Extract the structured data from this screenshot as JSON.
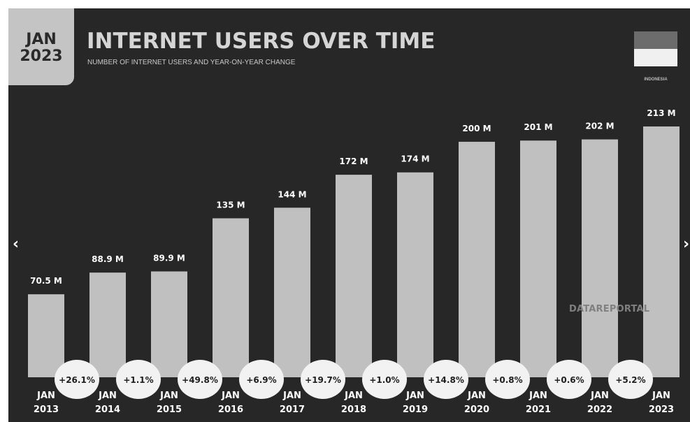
{
  "header": {
    "badge_month": "JAN",
    "badge_year": "2023",
    "title": "INTERNET USERS OVER TIME",
    "subtitle": "NUMBER OF INTERNET USERS AND YEAR-ON-YEAR CHANGE",
    "country": "INDONESIA"
  },
  "watermark": "DATAREPORTAL",
  "navigation": {
    "prev_symbol": "‹",
    "next_symbol": "›"
  },
  "colors": {
    "background": "#272727",
    "bar": "#c0c0c0",
    "text": "#ffffff",
    "bubble": "#f2f2f2",
    "bubble_text": "#1e1e1e"
  },
  "chart_data": {
    "type": "bar",
    "categories": [
      "JAN 2013",
      "JAN 2014",
      "JAN 2015",
      "JAN 2016",
      "JAN 2017",
      "JAN 2018",
      "JAN 2019",
      "JAN 2020",
      "JAN 2021",
      "JAN 2022",
      "JAN 2023"
    ],
    "values": [
      70.5,
      88.9,
      89.9,
      135,
      144,
      172,
      174,
      200,
      201,
      202,
      213
    ],
    "value_labels": [
      "70.5 M",
      "88.9 M",
      "89.9 M",
      "135 M",
      "144 M",
      "172 M",
      "174 M",
      "200 M",
      "201 M",
      "202 M",
      "213 M"
    ],
    "changes": [
      "+26.1%",
      "+1.1%",
      "+49.8%",
      "+6.9%",
      "+19.7%",
      "+1.0%",
      "+14.8%",
      "+0.8%",
      "+0.6%",
      "+5.2%"
    ],
    "title": "INTERNET USERS OVER TIME",
    "xlabel": "",
    "ylabel": "",
    "grid": false,
    "legend": "none"
  }
}
